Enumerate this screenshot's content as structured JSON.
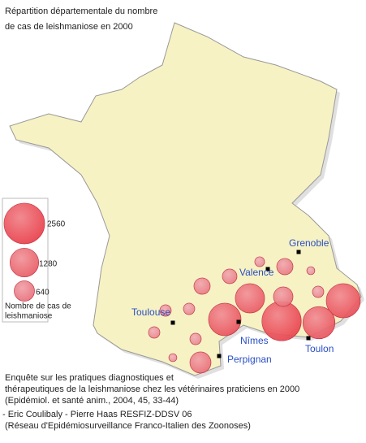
{
  "title": {
    "lines": [
      "Répartition départementale du nombre",
      "de cas de leishmaniose en 2000"
    ]
  },
  "legend": {
    "values": [
      2560,
      1280,
      640
    ],
    "caption_lines": [
      "Nombre de cas de",
      "leishmaniose"
    ]
  },
  "cities": [
    "Grenoble",
    "Valence",
    "Toulouse",
    "Nîmes",
    "Toulon",
    "Perpignan"
  ],
  "bubbles": {
    "values": [
      1800,
      1600,
      2400,
      590,
      1330,
      1640,
      330,
      150,
      410,
      100,
      200,
      410,
      200,
      200,
      690,
      200,
      100,
      200
    ]
  },
  "footer": {
    "survey_lines": [
      "Enquête sur les pratiques diagnostiques et",
      "thérapeutiques de la leishmaniose chez les vétérinaires praticiens en 2000",
      "(Epidémiol. et santé anim., 2004, 45, 33-44)"
    ],
    "credit_lines": [
      "- Eric Coulibaly - Pierre Haas RESFIZ-DDSV 06",
      "(Réseau d'Epidémiosurveillance Franco-Italien des Zoonoses)"
    ]
  }
}
